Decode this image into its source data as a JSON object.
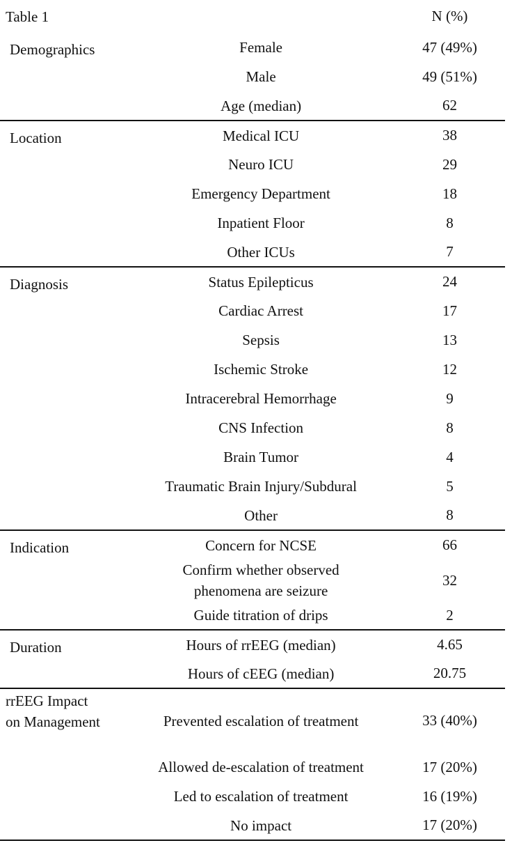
{
  "title": "Table 1",
  "header": "N (%)",
  "sections": [
    {
      "label": "Demographics",
      "rows": [
        [
          "Female",
          "47 (49%)"
        ],
        [
          "Male",
          "49 (51%)"
        ],
        [
          "Age (median)",
          "62"
        ]
      ]
    },
    {
      "label": "Location",
      "rows": [
        [
          "Medical ICU",
          "38"
        ],
        [
          "Neuro ICU",
          "29"
        ],
        [
          "Emergency Department",
          "18"
        ],
        [
          "Inpatient Floor",
          "8"
        ],
        [
          "Other ICUs",
          "7"
        ]
      ]
    },
    {
      "label": "Diagnosis",
      "rows": [
        [
          "Status Epilepticus",
          "24"
        ],
        [
          "Cardiac Arrest",
          "17"
        ],
        [
          "Sepsis",
          "13"
        ],
        [
          "Ischemic Stroke",
          "12"
        ],
        [
          "Intracerebral Hemorrhage",
          "9"
        ],
        [
          "CNS Infection",
          "8"
        ],
        [
          "Brain Tumor",
          "4"
        ],
        [
          "Traumatic Brain Injury/Subdural",
          "5"
        ],
        [
          "Other",
          "8"
        ]
      ]
    },
    {
      "label": "Indication",
      "rows": [
        [
          "Concern for NCSE",
          "66"
        ],
        [
          "Confirm whether observed phenomena are seizure",
          "32"
        ],
        [
          "Guide titration of drips",
          "2"
        ]
      ]
    },
    {
      "label": "Duration",
      "rows": [
        [
          "Hours of rrEEG (median)",
          "4.65"
        ],
        [
          "Hours of cEEG (median)",
          "20.75"
        ]
      ]
    },
    {
      "label": "rrEEG Impact on Management",
      "rows": [
        [
          "Prevented escalation of treatment",
          "33 (40%)"
        ],
        [
          "Allowed de-escalation of treatment",
          "17 (20%)"
        ],
        [
          "Led to escalation of treatment",
          "16 (19%)"
        ],
        [
          "No impact",
          "17 (20%)"
        ]
      ]
    }
  ]
}
